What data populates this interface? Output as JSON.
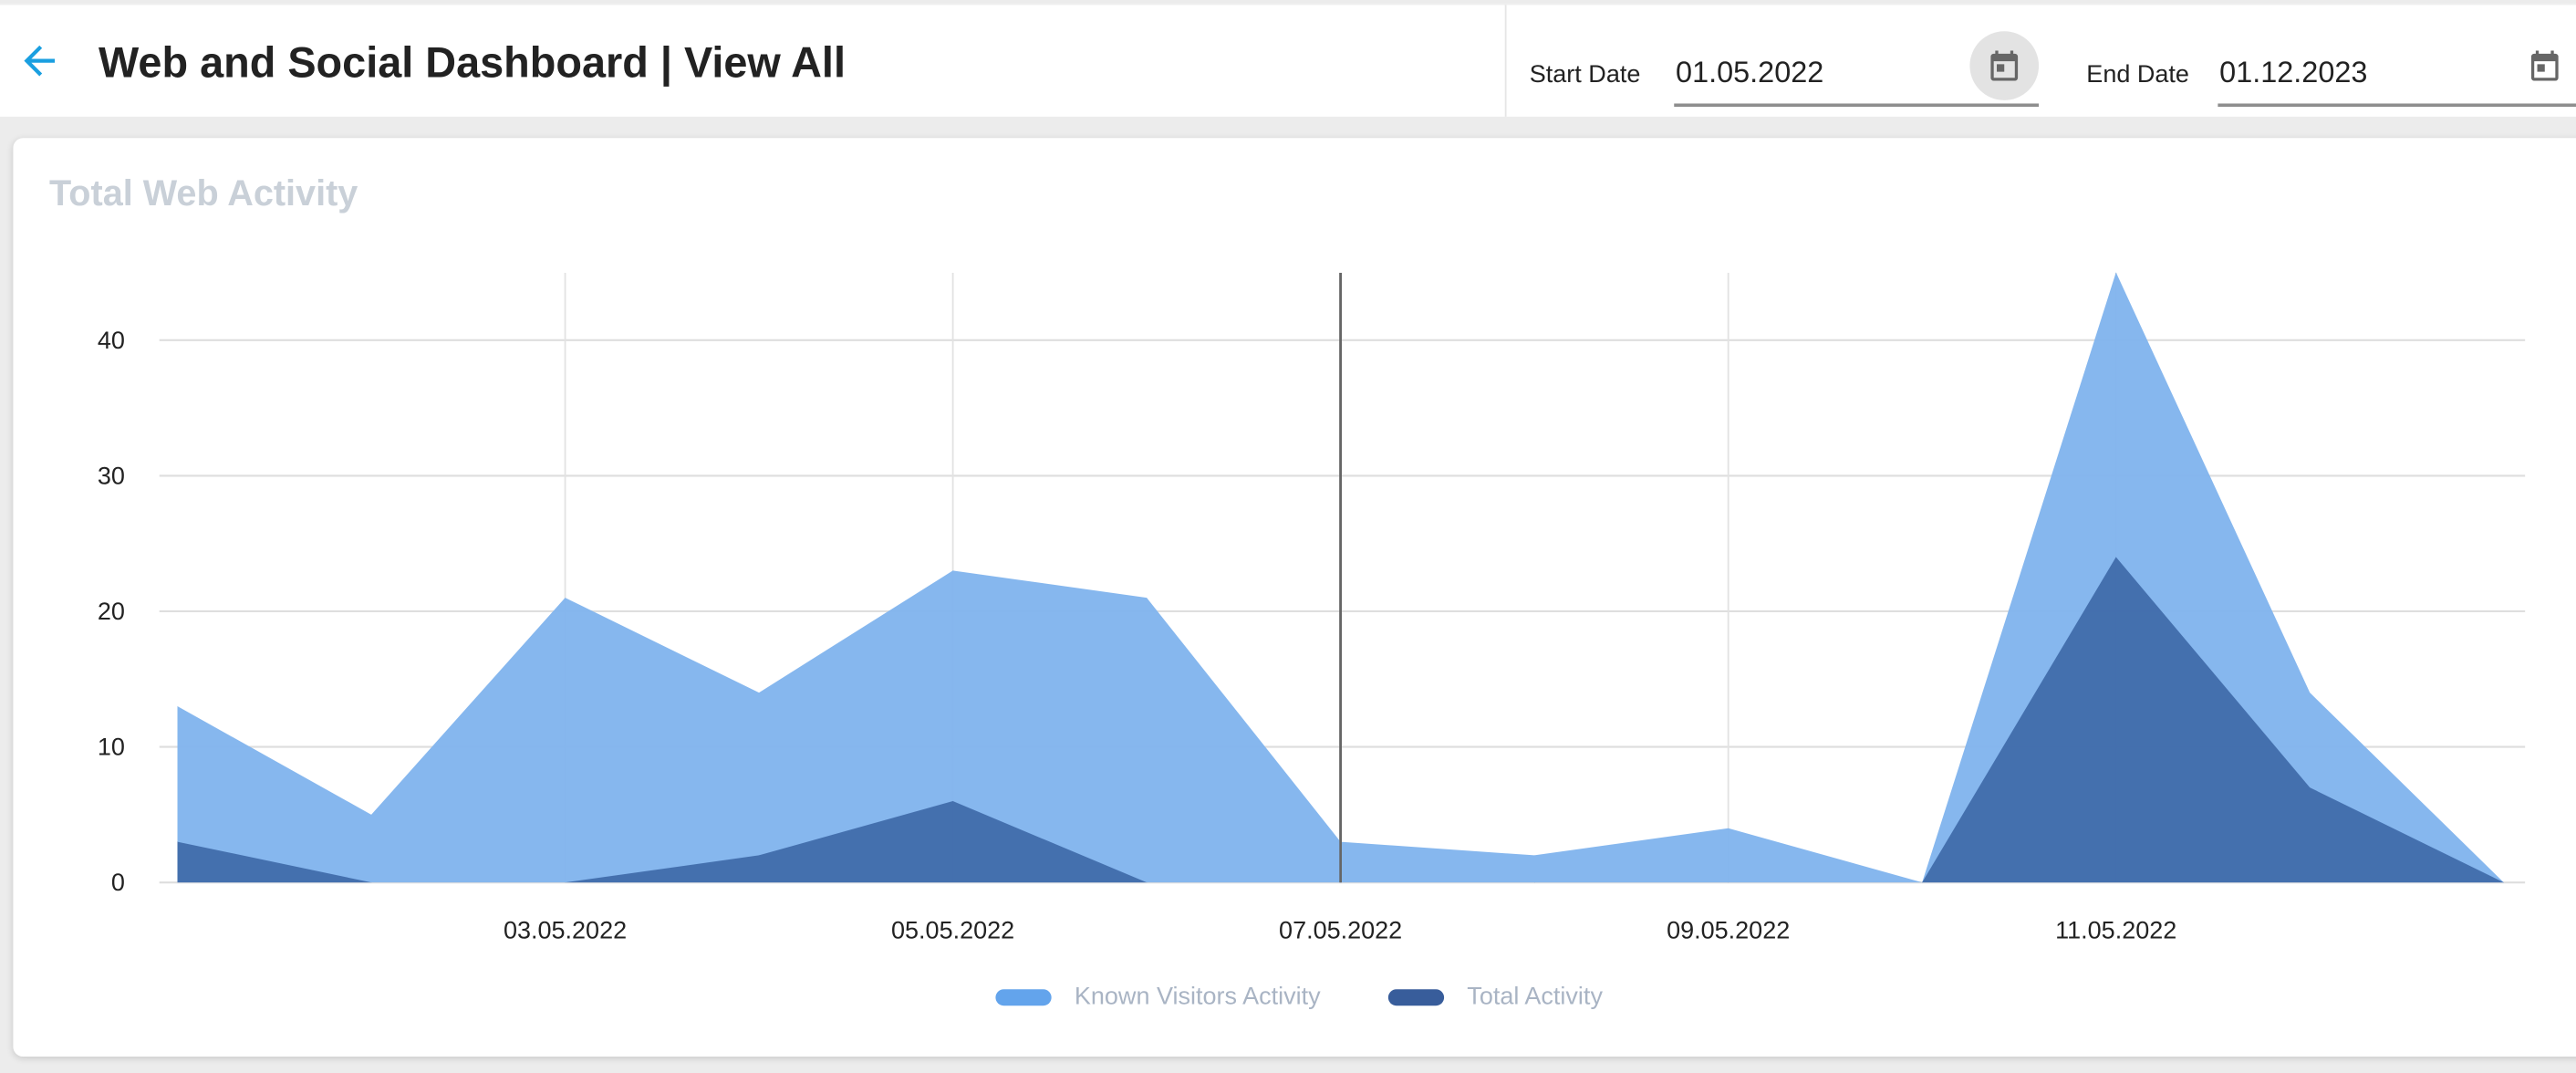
{
  "header": {
    "title": "Web and Social Dashboard | View All",
    "start_date_label": "Start Date",
    "start_date_value": "01.05.2022",
    "end_date_label": "End Date",
    "end_date_value": "01.12.2023"
  },
  "card": {
    "title": "Total Web Activity"
  },
  "colors": {
    "known": "#7fb3ed",
    "total": "#3f69a8",
    "accent": "#1a9fe0"
  },
  "chart_data": {
    "type": "area",
    "title": "Total Web Activity",
    "x": [
      "01.05.2022",
      "02.05.2022",
      "03.05.2022",
      "04.05.2022",
      "05.05.2022",
      "06.05.2022",
      "07.05.2022",
      "08.05.2022",
      "09.05.2022",
      "10.05.2022",
      "11.05.2022",
      "12.05.2022",
      "13.05.2022"
    ],
    "x_tick_labels": [
      "03.05.2022",
      "05.05.2022",
      "07.05.2022",
      "09.05.2022",
      "11.05.2022"
    ],
    "y_ticks": [
      0,
      10,
      20,
      30,
      40
    ],
    "ylim": [
      0,
      45
    ],
    "series": [
      {
        "name": "Known Visitors Activity",
        "values": [
          13,
          5,
          21,
          14,
          23,
          21,
          3,
          2,
          4,
          0,
          45,
          14,
          0
        ]
      },
      {
        "name": "Total Activity",
        "values": [
          3,
          0,
          0,
          2,
          6,
          0,
          0,
          0,
          0,
          0,
          24,
          7,
          0
        ]
      }
    ],
    "highlighted_x": "07.05.2022",
    "legend_position": "bottom",
    "grid": true
  }
}
